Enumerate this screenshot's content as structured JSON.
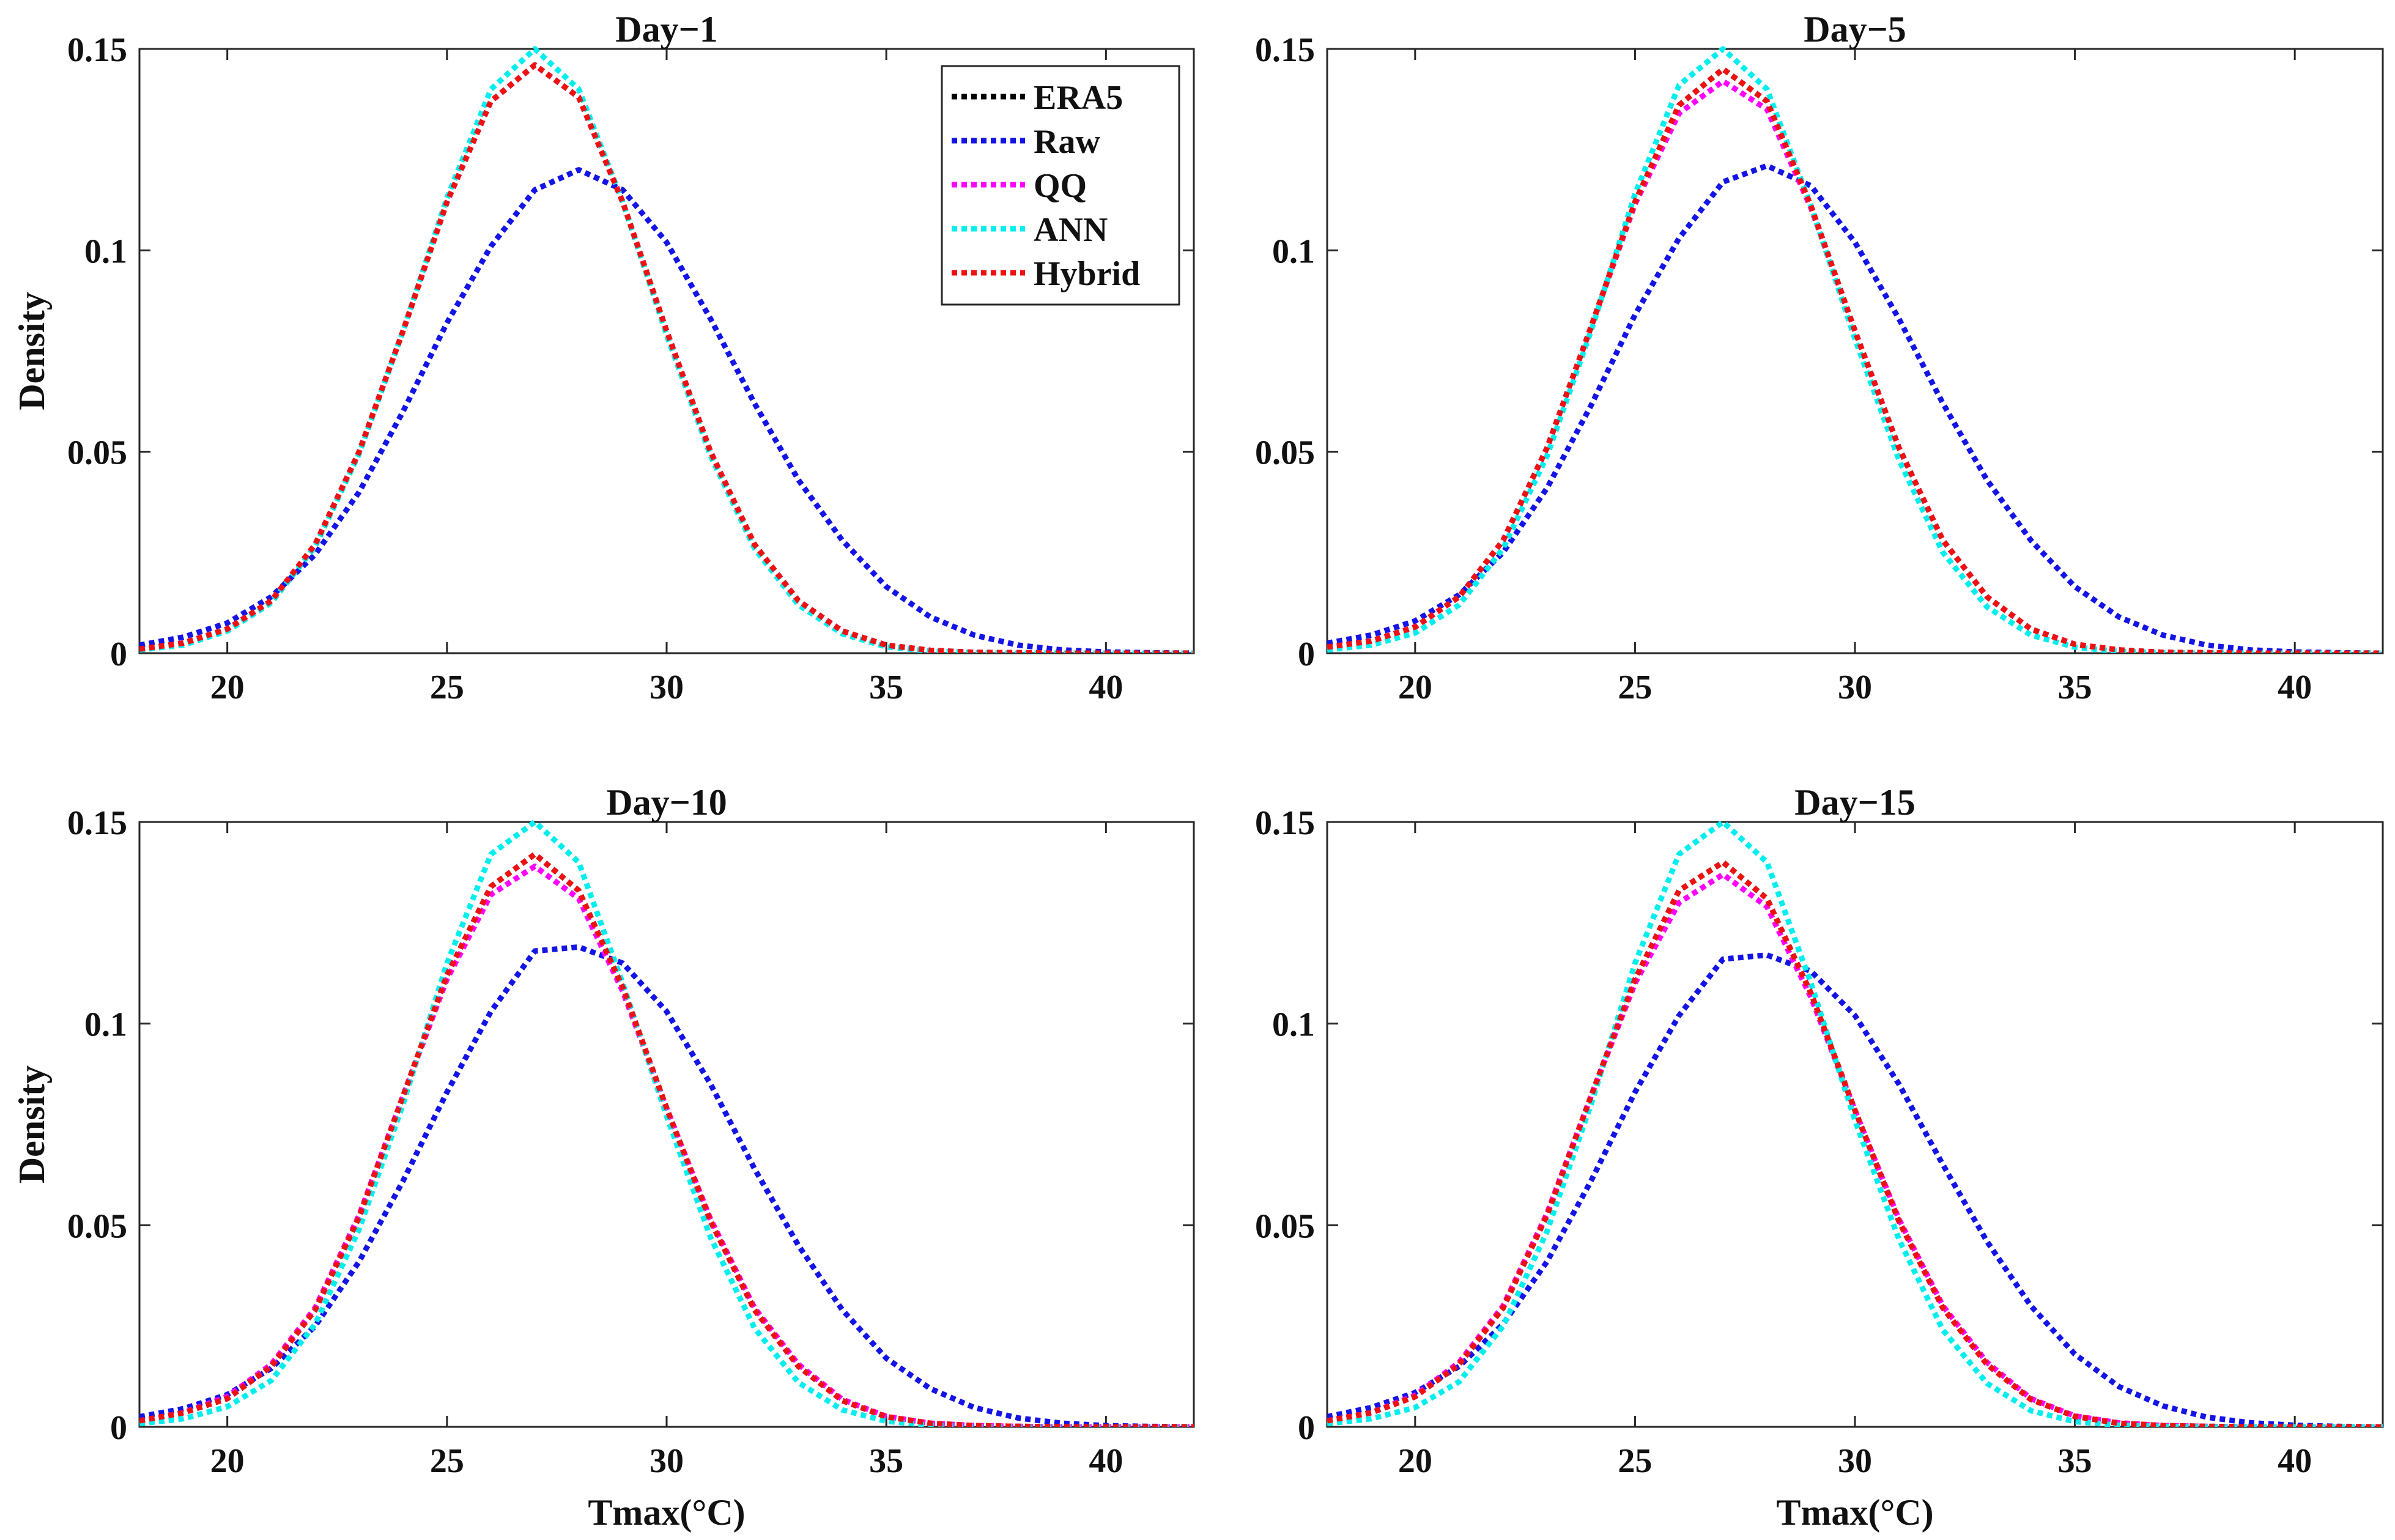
{
  "chart_data": [
    {
      "type": "line",
      "title": "Day−1",
      "xlabel": "",
      "ylabel": "Density",
      "xlim": [
        18,
        42
      ],
      "ylim": [
        0,
        0.15
      ],
      "xticks": [
        "20",
        "25",
        "30",
        "35",
        "40"
      ],
      "yticks": [
        "0",
        "0.05",
        "0.1",
        "0.15"
      ],
      "x": [
        18,
        19,
        20,
        21,
        22,
        23,
        24,
        25,
        26,
        27,
        28,
        29,
        30,
        31,
        32,
        33,
        34,
        35,
        36,
        37,
        38,
        39,
        40,
        41,
        42
      ],
      "legend": "top-right",
      "series": [
        {
          "name": "ERA5",
          "color": "#000000",
          "values": [
            0.001,
            0.0025,
            0.006,
            0.013,
            0.027,
            0.05,
            0.08,
            0.112,
            0.137,
            0.146,
            0.138,
            0.112,
            0.08,
            0.05,
            0.027,
            0.013,
            0.0055,
            0.002,
            0.0007,
            0.0002,
            0.0001,
            0,
            0,
            0,
            0
          ]
        },
        {
          "name": "Raw",
          "color": "#1414e6",
          "values": [
            0.002,
            0.004,
            0.0075,
            0.014,
            0.0245,
            0.04,
            0.06,
            0.082,
            0.101,
            0.115,
            0.12,
            0.115,
            0.102,
            0.083,
            0.062,
            0.043,
            0.028,
            0.0165,
            0.009,
            0.0045,
            0.002,
            0.0008,
            0.0003,
            0.0001,
            0
          ]
        },
        {
          "name": "QQ",
          "color": "#ff00ff",
          "values": [
            0.001,
            0.0025,
            0.006,
            0.013,
            0.027,
            0.05,
            0.08,
            0.112,
            0.137,
            0.146,
            0.138,
            0.112,
            0.08,
            0.05,
            0.027,
            0.013,
            0.0055,
            0.002,
            0.0007,
            0.0002,
            0.0001,
            0,
            0,
            0,
            0
          ]
        },
        {
          "name": "ANN",
          "color": "#00eeee",
          "values": [
            0.0008,
            0.002,
            0.0055,
            0.0125,
            0.0265,
            0.0495,
            0.08,
            0.113,
            0.14,
            0.15,
            0.14,
            0.112,
            0.079,
            0.049,
            0.026,
            0.012,
            0.0048,
            0.0016,
            0.0005,
            0.0001,
            0,
            0,
            0,
            0,
            0
          ]
        },
        {
          "name": "Hybrid",
          "color": "#ee1111",
          "values": [
            0.001,
            0.0025,
            0.006,
            0.013,
            0.027,
            0.05,
            0.08,
            0.112,
            0.137,
            0.146,
            0.138,
            0.112,
            0.08,
            0.05,
            0.027,
            0.013,
            0.0055,
            0.002,
            0.0007,
            0.0002,
            0.0001,
            0,
            0,
            0,
            0
          ]
        }
      ]
    },
    {
      "type": "line",
      "title": "Day−5",
      "xlabel": "",
      "ylabel": "",
      "xlim": [
        18,
        42
      ],
      "ylim": [
        0,
        0.15
      ],
      "xticks": [
        "20",
        "25",
        "30",
        "35",
        "40"
      ],
      "yticks": [
        "0",
        "0.05",
        "0.1",
        "0.15"
      ],
      "x": [
        18,
        19,
        20,
        21,
        22,
        23,
        24,
        25,
        26,
        27,
        28,
        29,
        30,
        31,
        32,
        33,
        34,
        35,
        36,
        37,
        38,
        39,
        40,
        41,
        42
      ],
      "series": [
        {
          "name": "ERA5",
          "color": "#000000",
          "values": [
            0.0015,
            0.003,
            0.0065,
            0.014,
            0.028,
            0.051,
            0.081,
            0.112,
            0.136,
            0.145,
            0.137,
            0.111,
            0.08,
            0.051,
            0.028,
            0.014,
            0.006,
            0.0022,
            0.0008,
            0.0002,
            0.0001,
            0,
            0,
            0,
            0
          ]
        },
        {
          "name": "Raw",
          "color": "#1414e6",
          "values": [
            0.0025,
            0.0045,
            0.008,
            0.0145,
            0.025,
            0.041,
            0.0615,
            0.084,
            0.103,
            0.117,
            0.121,
            0.116,
            0.102,
            0.083,
            0.062,
            0.043,
            0.028,
            0.0165,
            0.009,
            0.0045,
            0.002,
            0.0008,
            0.0003,
            0.0001,
            0
          ]
        },
        {
          "name": "QQ",
          "color": "#ff00ff",
          "values": [
            0.0015,
            0.003,
            0.0065,
            0.014,
            0.028,
            0.051,
            0.081,
            0.1115,
            0.134,
            0.142,
            0.135,
            0.1105,
            0.08,
            0.051,
            0.028,
            0.014,
            0.006,
            0.0022,
            0.0008,
            0.0002,
            0.0001,
            0,
            0,
            0,
            0
          ]
        },
        {
          "name": "ANN",
          "color": "#00eeee",
          "values": [
            0.0008,
            0.002,
            0.005,
            0.012,
            0.026,
            0.049,
            0.08,
            0.114,
            0.141,
            0.15,
            0.14,
            0.111,
            0.078,
            0.048,
            0.025,
            0.0115,
            0.0045,
            0.0015,
            0.0004,
            0.0001,
            0,
            0,
            0,
            0,
            0
          ]
        },
        {
          "name": "Hybrid",
          "color": "#ee1111",
          "values": [
            0.0015,
            0.003,
            0.0065,
            0.014,
            0.028,
            0.051,
            0.081,
            0.112,
            0.136,
            0.145,
            0.137,
            0.111,
            0.08,
            0.051,
            0.028,
            0.014,
            0.006,
            0.0022,
            0.0008,
            0.0002,
            0.0001,
            0,
            0,
            0,
            0
          ]
        }
      ]
    },
    {
      "type": "line",
      "title": "Day−10",
      "xlabel": "Tmax(°C)",
      "ylabel": "Density",
      "xlim": [
        18,
        42
      ],
      "ylim": [
        0,
        0.15
      ],
      "xticks": [
        "20",
        "25",
        "30",
        "35",
        "40"
      ],
      "yticks": [
        "0",
        "0.05",
        "0.1",
        "0.15"
      ],
      "x": [
        18,
        19,
        20,
        21,
        22,
        23,
        24,
        25,
        26,
        27,
        28,
        29,
        30,
        31,
        32,
        33,
        34,
        35,
        36,
        37,
        38,
        39,
        40,
        41,
        42
      ],
      "series": [
        {
          "name": "ERA5",
          "color": "#000000",
          "values": [
            0.0015,
            0.0035,
            0.007,
            0.015,
            0.029,
            0.052,
            0.082,
            0.112,
            0.134,
            0.142,
            0.133,
            0.109,
            0.079,
            0.051,
            0.029,
            0.015,
            0.0065,
            0.0025,
            0.0009,
            0.0003,
            0.0001,
            0,
            0,
            0,
            0
          ]
        },
        {
          "name": "Raw",
          "color": "#1414e6",
          "values": [
            0.0025,
            0.0045,
            0.008,
            0.0145,
            0.025,
            0.041,
            0.061,
            0.083,
            0.103,
            0.118,
            0.119,
            0.115,
            0.103,
            0.085,
            0.064,
            0.045,
            0.029,
            0.017,
            0.0095,
            0.0048,
            0.0022,
            0.0009,
            0.0003,
            0.0001,
            0
          ]
        },
        {
          "name": "QQ",
          "color": "#ff00ff",
          "values": [
            0.0015,
            0.0035,
            0.0075,
            0.0155,
            0.0295,
            0.0525,
            0.082,
            0.111,
            0.132,
            0.139,
            0.131,
            0.108,
            0.079,
            0.0515,
            0.0295,
            0.0155,
            0.0068,
            0.0026,
            0.0009,
            0.0003,
            0.0001,
            0,
            0,
            0,
            0
          ]
        },
        {
          "name": "ANN",
          "color": "#00eeee",
          "values": [
            0.0008,
            0.002,
            0.005,
            0.0115,
            0.0255,
            0.049,
            0.08,
            0.115,
            0.142,
            0.15,
            0.14,
            0.11,
            0.077,
            0.047,
            0.0245,
            0.011,
            0.0042,
            0.0014,
            0.0004,
            0.0001,
            0,
            0,
            0,
            0,
            0
          ]
        },
        {
          "name": "Hybrid",
          "color": "#ee1111",
          "values": [
            0.0015,
            0.0035,
            0.007,
            0.015,
            0.029,
            0.052,
            0.082,
            0.112,
            0.134,
            0.142,
            0.133,
            0.109,
            0.079,
            0.051,
            0.029,
            0.015,
            0.0065,
            0.0025,
            0.0009,
            0.0003,
            0.0001,
            0,
            0,
            0,
            0
          ]
        }
      ]
    },
    {
      "type": "line",
      "title": "Day−15",
      "xlabel": "Tmax(°C)",
      "ylabel": "",
      "xlim": [
        18,
        42
      ],
      "ylim": [
        0,
        0.15
      ],
      "xticks": [
        "20",
        "25",
        "30",
        "35",
        "40"
      ],
      "yticks": [
        "0",
        "0.05",
        "0.1",
        "0.15"
      ],
      "x": [
        18,
        19,
        20,
        21,
        22,
        23,
        24,
        25,
        26,
        27,
        28,
        29,
        30,
        31,
        32,
        33,
        34,
        35,
        36,
        37,
        38,
        39,
        40,
        41,
        42
      ],
      "series": [
        {
          "name": "ERA5",
          "color": "#000000",
          "values": [
            0.0015,
            0.0035,
            0.0075,
            0.0155,
            0.0295,
            0.0525,
            0.082,
            0.111,
            0.133,
            0.14,
            0.131,
            0.1075,
            0.0785,
            0.051,
            0.0295,
            0.0155,
            0.0068,
            0.0026,
            0.0009,
            0.0003,
            0.0001,
            0,
            0,
            0,
            0
          ]
        },
        {
          "name": "Raw",
          "color": "#1414e6",
          "values": [
            0.0025,
            0.0048,
            0.0085,
            0.015,
            0.0255,
            0.041,
            0.061,
            0.083,
            0.102,
            0.116,
            0.117,
            0.113,
            0.102,
            0.085,
            0.065,
            0.046,
            0.03,
            0.018,
            0.01,
            0.0052,
            0.0024,
            0.001,
            0.0004,
            0.0001,
            0
          ]
        },
        {
          "name": "QQ",
          "color": "#ff00ff",
          "values": [
            0.0015,
            0.0035,
            0.0078,
            0.016,
            0.03,
            0.053,
            0.082,
            0.11,
            0.13,
            0.137,
            0.129,
            0.1065,
            0.0785,
            0.0515,
            0.03,
            0.016,
            0.007,
            0.0027,
            0.001,
            0.0003,
            0.0001,
            0,
            0,
            0,
            0
          ]
        },
        {
          "name": "ANN",
          "color": "#00eeee",
          "values": [
            0.0008,
            0.002,
            0.0048,
            0.0112,
            0.025,
            0.0485,
            0.08,
            0.115,
            0.142,
            0.15,
            0.14,
            0.11,
            0.076,
            0.0465,
            0.024,
            0.0108,
            0.004,
            0.0013,
            0.0004,
            0.0001,
            0,
            0,
            0,
            0,
            0
          ]
        },
        {
          "name": "Hybrid",
          "color": "#ee1111",
          "values": [
            0.0015,
            0.0035,
            0.0075,
            0.0155,
            0.0295,
            0.0525,
            0.082,
            0.111,
            0.133,
            0.14,
            0.131,
            0.1075,
            0.0785,
            0.051,
            0.0295,
            0.0155,
            0.0068,
            0.0026,
            0.0009,
            0.0003,
            0.0001,
            0,
            0,
            0,
            0
          ]
        }
      ]
    }
  ]
}
